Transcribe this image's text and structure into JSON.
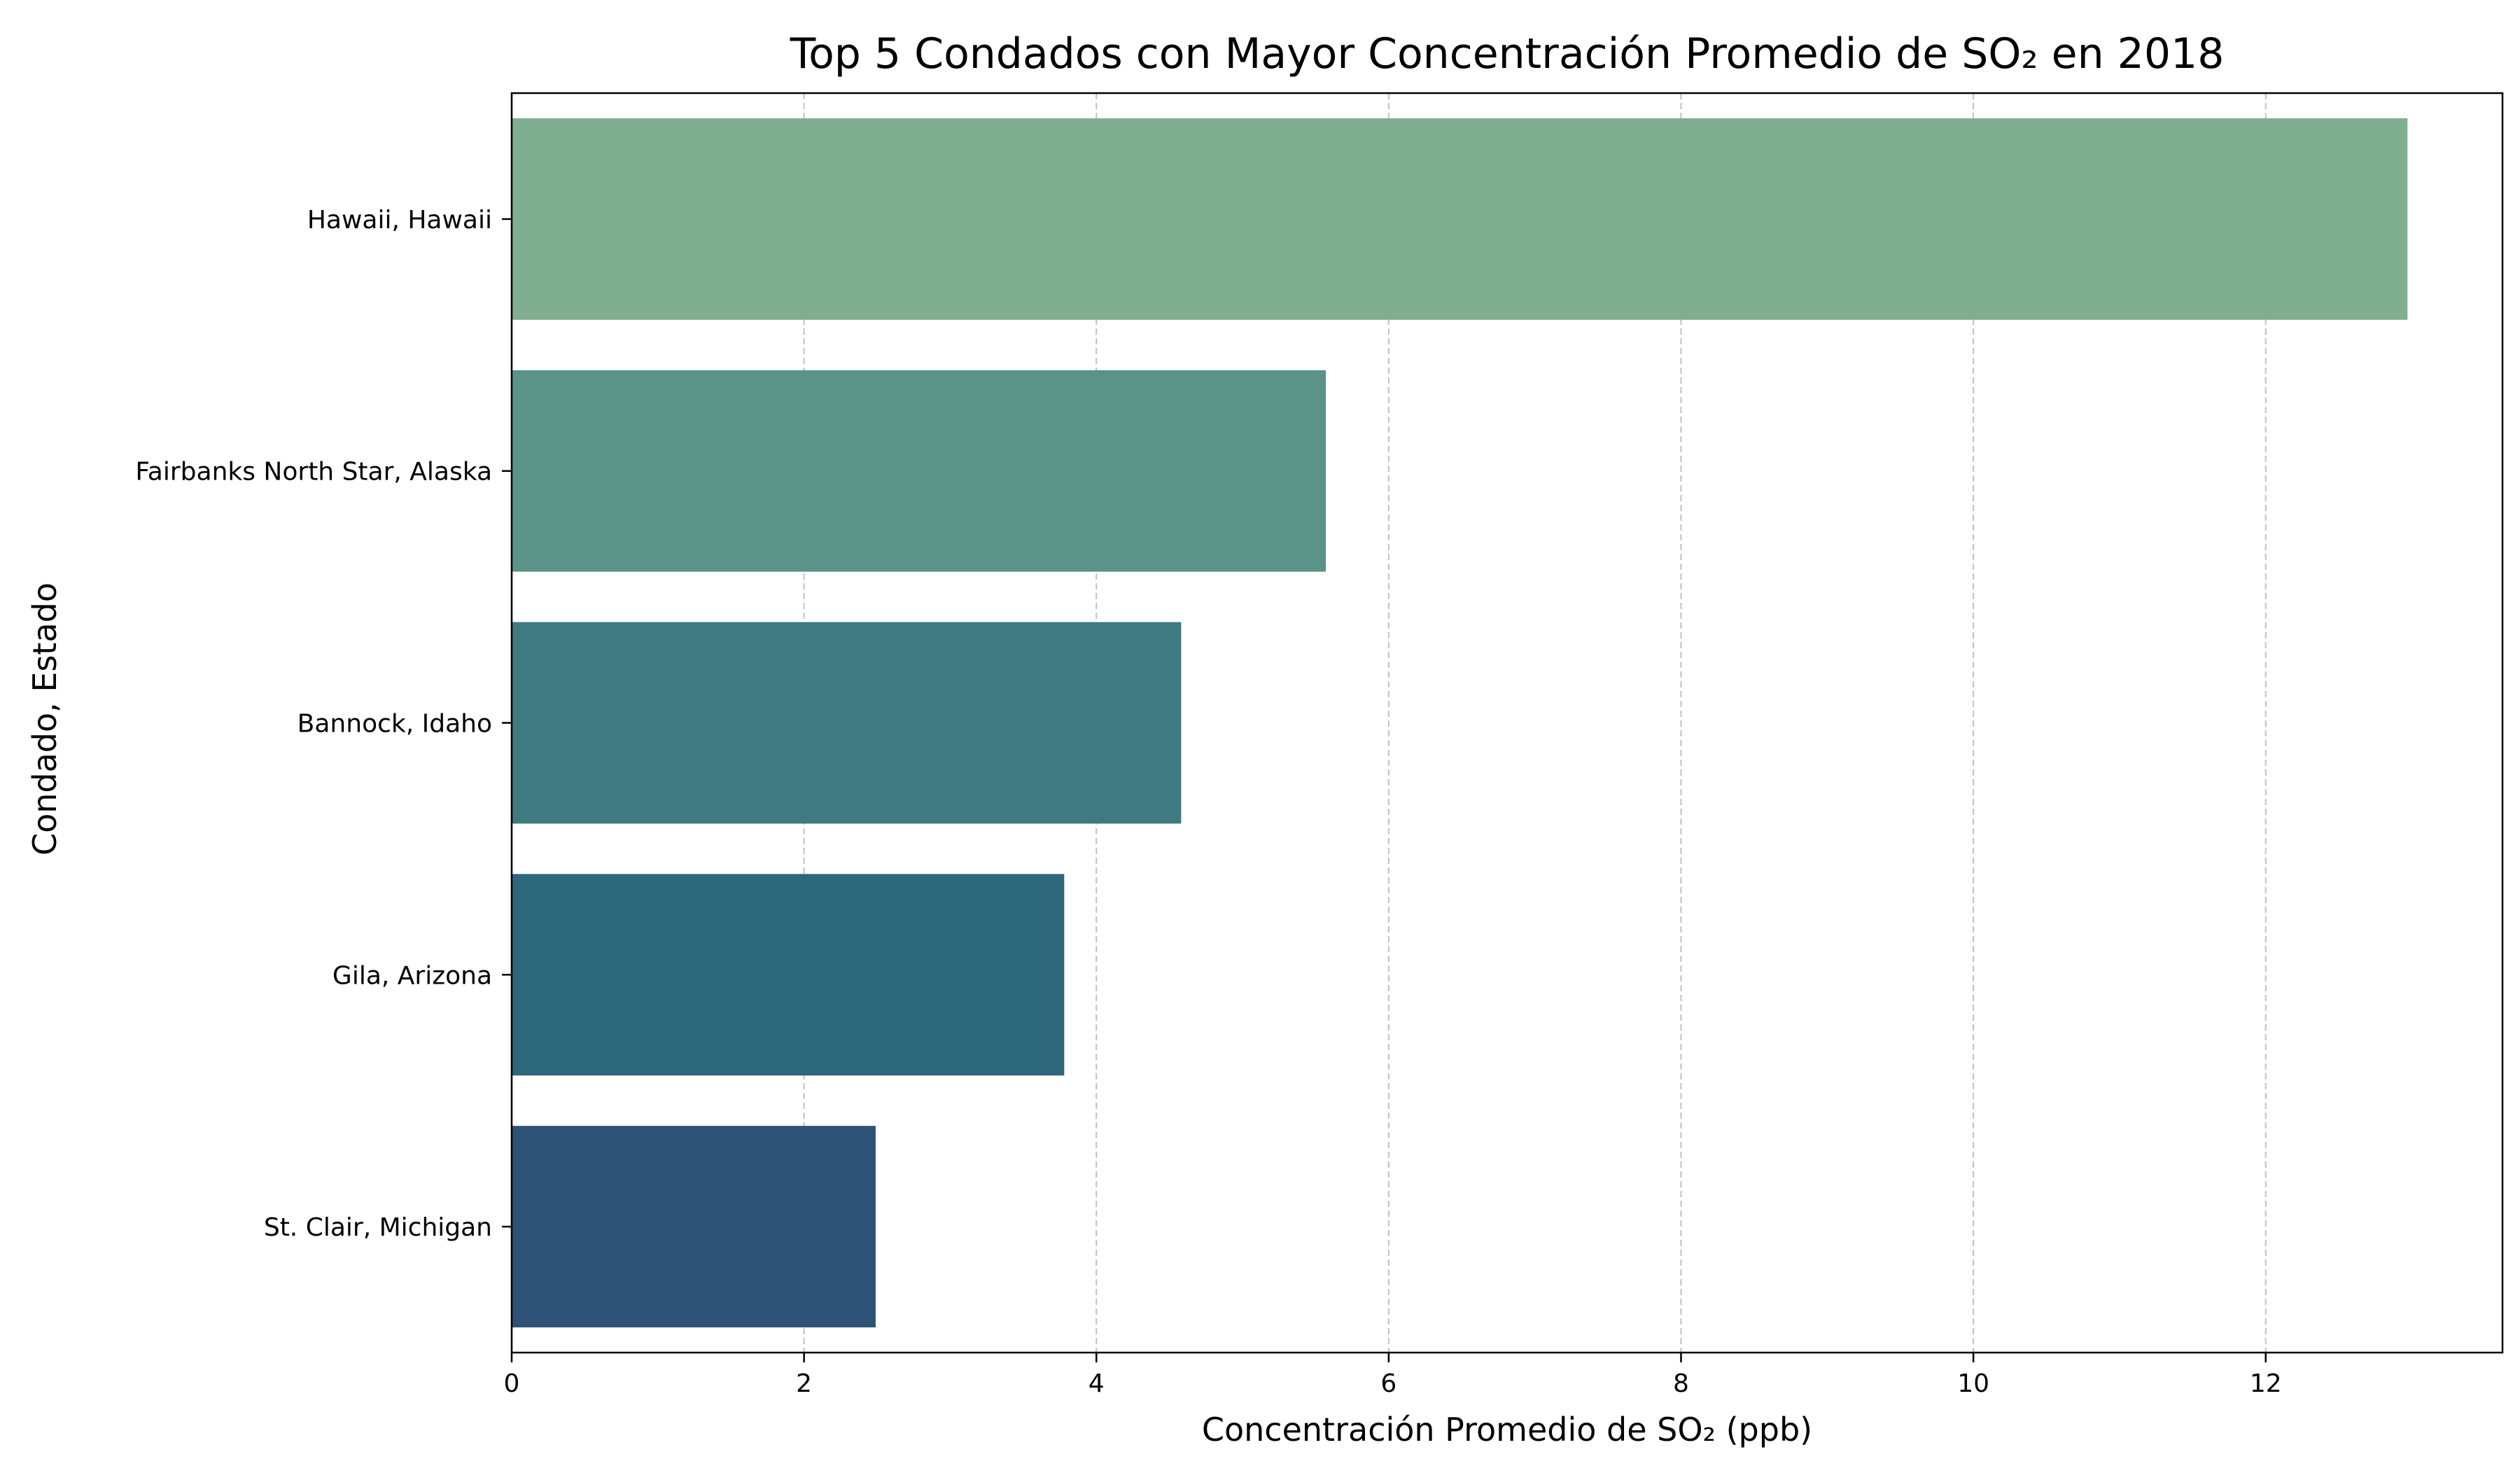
{
  "chart_data": {
    "type": "bar",
    "orientation": "horizontal",
    "title": "Top 5 Condados con Mayor Concentración Promedio de SO₂ en 2018",
    "xlabel": "Concentración Promedio de SO₂ (ppb)",
    "ylabel": "Condado, Estado",
    "categories": [
      "Hawaii, Hawaii",
      "Fairbanks North Star, Alaska",
      "Bannock, Idaho",
      "Gila, Arizona",
      "St. Clair, Michigan"
    ],
    "values": [
      12.97,
      5.57,
      4.58,
      3.78,
      2.49
    ],
    "colors": [
      "#7fae90",
      "#5b9389",
      "#3e7a7f",
      "#2d677b",
      "#2e5275"
    ],
    "xlim": [
      0,
      13.62
    ],
    "xticks": [
      0,
      2,
      4,
      6,
      8,
      10,
      12
    ],
    "grid": {
      "x": true,
      "y": false,
      "style": "dashed"
    },
    "legend": "none"
  }
}
